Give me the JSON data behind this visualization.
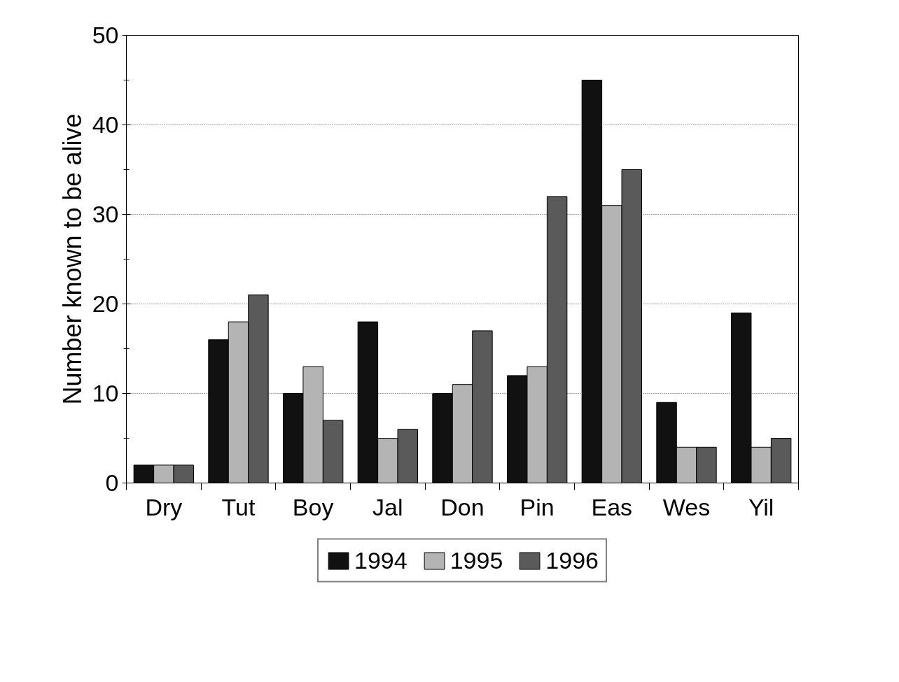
{
  "chart_data": {
    "type": "bar",
    "ylabel": "Number known to be alive",
    "categories": [
      "Dry",
      "Tut",
      "Boy",
      "Jal",
      "Don",
      "Pin",
      "Eas",
      "Wes",
      "Yil"
    ],
    "series": [
      {
        "name": "1994",
        "color": "#111111",
        "values": [
          2,
          16,
          10,
          18,
          10,
          12,
          45,
          9,
          19
        ]
      },
      {
        "name": "1995",
        "color": "#b4b4b4",
        "values": [
          2,
          18,
          13,
          5,
          11,
          13,
          31,
          4,
          4
        ]
      },
      {
        "name": "1996",
        "color": "#5a5a5a",
        "values": [
          2,
          21,
          7,
          6,
          17,
          32,
          35,
          4,
          5
        ]
      }
    ],
    "ylim": [
      0,
      50
    ],
    "yticks": [
      0,
      {
        "value": 5,
        "label": null
      },
      10,
      {
        "value": 15,
        "label": null
      },
      20,
      {
        "value": 25,
        "label": null
      },
      30,
      {
        "value": 35,
        "label": null
      },
      40,
      {
        "value": 45,
        "label": null
      },
      50
    ],
    "grid": "y",
    "legend": "bottom"
  }
}
